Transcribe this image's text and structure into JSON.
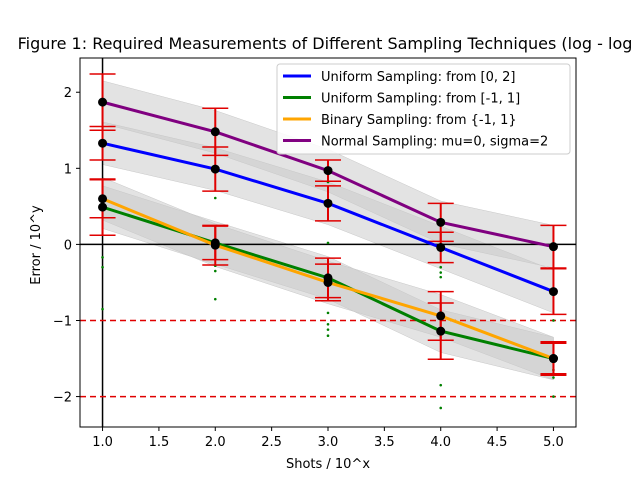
{
  "chart_data": {
    "type": "line",
    "title": "Figure 1: Required Measurements of Different Sampling Techniques (log - log",
    "xlabel": "Shots / 10^x",
    "ylabel": "Error / 10^y",
    "xlim": [
      0.8,
      5.2
    ],
    "ylim": [
      -2.4,
      2.45
    ],
    "x": [
      1,
      2,
      3,
      4,
      5
    ],
    "xticks": [
      "1.0",
      "1.5",
      "2.0",
      "2.5",
      "3.0",
      "3.5",
      "4.0",
      "4.5",
      "5.0"
    ],
    "yticks": [
      "2",
      "1",
      "0",
      "−1",
      "−2"
    ],
    "legend_position": "top-right",
    "series": [
      {
        "name": "Uniform Sampling: from [0, 2]",
        "color": "#0000ff",
        "values": [
          1.33,
          0.99,
          0.54,
          -0.04,
          -0.62
        ],
        "errors": [
          0.22,
          0.29,
          0.23,
          0.2,
          0.3
        ],
        "band": 0.28
      },
      {
        "name": "Uniform Sampling: from [-1, 1]",
        "color": "#008000",
        "values": [
          0.49,
          0.02,
          -0.44,
          -1.14,
          -1.5
        ],
        "errors": [
          0.37,
          0.22,
          0.26,
          0.37,
          0.22
        ],
        "band": 0.28
      },
      {
        "name": "Binary Sampling: from {-1, 1}",
        "color": "#ffa500",
        "values": [
          0.6,
          -0.01,
          -0.5,
          -0.94,
          -1.5
        ],
        "errors": [
          0.25,
          0.26,
          0.24,
          0.32,
          0.2
        ],
        "band": 0.28
      },
      {
        "name": "Normal Sampling: mu=0, sigma=2",
        "color": "#800080",
        "values": [
          1.87,
          1.48,
          0.97,
          0.29,
          -0.03
        ],
        "errors": [
          0.37,
          0.31,
          0.14,
          0.25,
          0.28
        ],
        "band": 0.28
      }
    ],
    "scatter_points": {
      "color": "#008000",
      "points": [
        [
          1,
          1.33
        ],
        [
          1,
          0.49
        ],
        [
          1,
          -0.17
        ],
        [
          1,
          -0.3
        ],
        [
          1,
          -0.85
        ],
        [
          2,
          0.61
        ],
        [
          2,
          0.02
        ],
        [
          2,
          -0.28
        ],
        [
          2,
          -0.35
        ],
        [
          2,
          -0.72
        ],
        [
          3,
          0.82
        ],
        [
          3,
          0.02
        ],
        [
          3,
          -0.9
        ],
        [
          3,
          -1.05
        ],
        [
          3,
          -1.12
        ],
        [
          3,
          -1.2
        ],
        [
          4,
          -0.3
        ],
        [
          4,
          -0.37
        ],
        [
          4,
          -0.43
        ],
        [
          4,
          -1.85
        ],
        [
          4,
          -2.15
        ],
        [
          5,
          -1.0
        ],
        [
          5,
          -1.55
        ],
        [
          5,
          -1.65
        ],
        [
          5,
          -1.75
        ],
        [
          5,
          -2.0
        ]
      ]
    },
    "reference_lines": [
      {
        "type": "horizontal",
        "y": 0,
        "color": "#000000",
        "style": "solid"
      },
      {
        "type": "vertical",
        "x": 1,
        "color": "#000000",
        "style": "solid"
      },
      {
        "type": "horizontal",
        "y": -1,
        "color": "#e00000",
        "style": "dashed"
      },
      {
        "type": "horizontal",
        "y": -2,
        "color": "#e00000",
        "style": "dashed"
      }
    ],
    "errorbar_color": "#e00000",
    "band_color": "#c8c8c8",
    "grid": false
  }
}
